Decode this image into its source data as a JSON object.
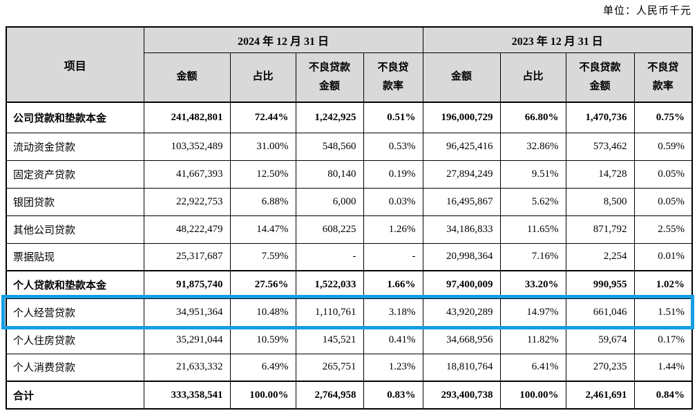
{
  "unit_label": "单位：人民币千元",
  "colors": {
    "header_bg": "#d9d9d9",
    "border": "#000000",
    "highlight": "#149ee4"
  },
  "table": {
    "item_header": "项目",
    "groups": [
      {
        "title": "2024 年 12 月 31 日"
      },
      {
        "title": "2023 年 12 月 31 日"
      }
    ],
    "sub_headers": [
      "金额",
      "占比",
      "不良贷款\n金额",
      "不良贷\n款率"
    ],
    "rows": [
      {
        "label": "公司贷款和垫款本金",
        "bold": true,
        "section": true,
        "highlight": false,
        "values": [
          "241,482,801",
          "72.44%",
          "1,242,925",
          "0.51%",
          "196,000,729",
          "66.80%",
          "1,470,736",
          "0.75%"
        ]
      },
      {
        "label": "流动资金贷款",
        "bold": false,
        "section": false,
        "highlight": false,
        "values": [
          "103,352,489",
          "31.00%",
          "548,560",
          "0.53%",
          "96,425,416",
          "32.86%",
          "573,462",
          "0.59%"
        ]
      },
      {
        "label": "固定资产贷款",
        "bold": false,
        "section": false,
        "highlight": false,
        "values": [
          "41,667,393",
          "12.50%",
          "80,140",
          "0.19%",
          "27,894,249",
          "9.51%",
          "14,728",
          "0.05%"
        ]
      },
      {
        "label": "银团贷款",
        "bold": false,
        "section": false,
        "highlight": false,
        "values": [
          "22,922,753",
          "6.88%",
          "6,000",
          "0.03%",
          "16,495,867",
          "5.62%",
          "8,500",
          "0.05%"
        ]
      },
      {
        "label": "其他公司贷款",
        "bold": false,
        "section": false,
        "highlight": false,
        "values": [
          "48,222,479",
          "14.47%",
          "608,225",
          "1.26%",
          "34,186,833",
          "11.65%",
          "871,792",
          "2.55%"
        ]
      },
      {
        "label": "票据贴现",
        "bold": false,
        "section": false,
        "highlight": false,
        "values": [
          "25,317,687",
          "7.59%",
          "-",
          "-",
          "20,998,364",
          "7.16%",
          "2,254",
          "0.01%"
        ]
      },
      {
        "label": "个人贷款和垫款本金",
        "bold": true,
        "section": true,
        "highlight": false,
        "values": [
          "91,875,740",
          "27.56%",
          "1,522,033",
          "1.66%",
          "97,400,009",
          "33.20%",
          "990,955",
          "1.02%"
        ]
      },
      {
        "label": "个人经营贷款",
        "bold": false,
        "section": false,
        "highlight": true,
        "values": [
          "34,951,364",
          "10.48%",
          "1,110,761",
          "3.18%",
          "43,920,289",
          "14.97%",
          "661,046",
          "1.51%"
        ]
      },
      {
        "label": "个人住房贷款",
        "bold": false,
        "section": false,
        "highlight": false,
        "values": [
          "35,291,044",
          "10.59%",
          "145,521",
          "0.41%",
          "34,668,956",
          "11.82%",
          "59,674",
          "0.17%"
        ]
      },
      {
        "label": "个人消费贷款",
        "bold": false,
        "section": false,
        "highlight": false,
        "values": [
          "21,633,332",
          "6.49%",
          "265,751",
          "1.23%",
          "18,810,764",
          "6.41%",
          "270,235",
          "1.44%"
        ]
      },
      {
        "label": "合计",
        "bold": true,
        "section": true,
        "highlight": false,
        "values": [
          "333,358,541",
          "100.00%",
          "2,764,958",
          "0.83%",
          "293,400,738",
          "100.00%",
          "2,461,691",
          "0.84%"
        ]
      }
    ]
  }
}
